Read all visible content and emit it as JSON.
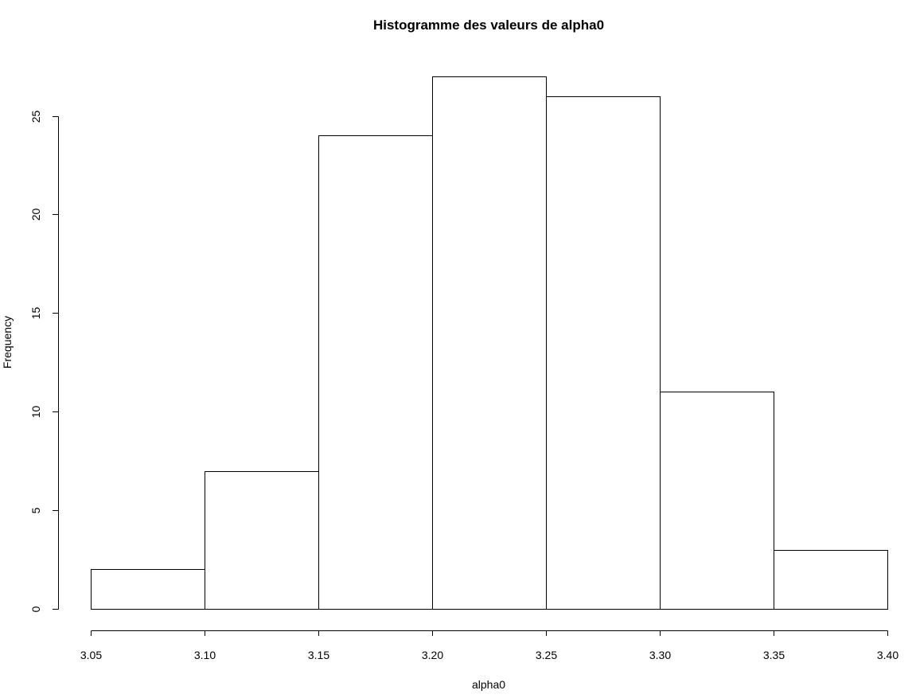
{
  "chart_data": {
    "type": "bar",
    "title": "Histogramme des valeurs de alpha0",
    "xlabel": "alpha0",
    "ylabel": "Frequency",
    "bins": [
      {
        "from": 3.05,
        "to": 3.1,
        "count": 2
      },
      {
        "from": 3.1,
        "to": 3.15,
        "count": 7
      },
      {
        "from": 3.15,
        "to": 3.2,
        "count": 24
      },
      {
        "from": 3.2,
        "to": 3.25,
        "count": 27
      },
      {
        "from": 3.25,
        "to": 3.3,
        "count": 26
      },
      {
        "from": 3.3,
        "to": 3.35,
        "count": 11
      },
      {
        "from": 3.35,
        "to": 3.4,
        "count": 3
      }
    ],
    "xlim": [
      3.05,
      3.4
    ],
    "ylim": [
      0,
      27
    ],
    "x_ticks": [
      "3.05",
      "3.10",
      "3.15",
      "3.20",
      "3.25",
      "3.30",
      "3.35",
      "3.40"
    ],
    "y_ticks": [
      "0",
      "5",
      "10",
      "15",
      "20",
      "25"
    ],
    "grid": false,
    "legend": "none",
    "colors": {
      "bar_fill": "#ffffff",
      "bar_stroke": "#000000",
      "text": "#000000"
    }
  }
}
